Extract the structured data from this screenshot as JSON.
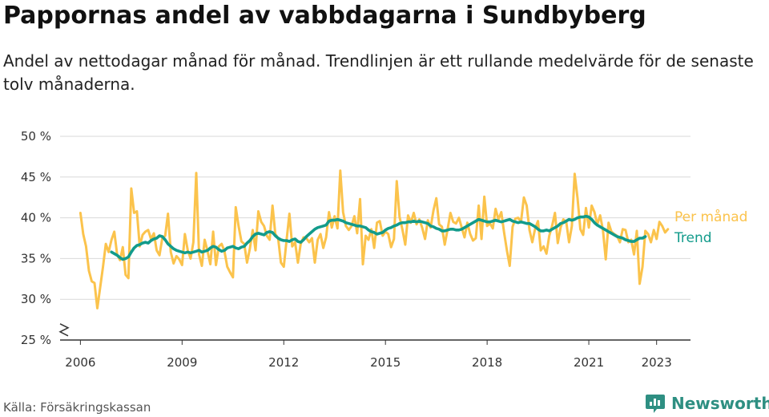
{
  "title": "Pappornas andel av vabbdagarna i Sundbyberg",
  "subtitle": "Andel av nettodagar månad för månad. Trendlinjen är ett rullande medelvärde för de senaste tolv månaderna.",
  "source": "Källa: Försäkringskassan",
  "brand": {
    "name": "Newsworthy",
    "icon": "newsworthy-logo-icon",
    "color": "#2e8f82"
  },
  "chart_data": {
    "type": "line",
    "title": "Pappornas andel av vabbdagarna i Sundbyberg",
    "xlabel": "",
    "ylabel": "",
    "x_start": "2006-01",
    "x_step": "month",
    "xlim": [
      2005.4,
      2024.0
    ],
    "ylim": [
      25,
      50
    ],
    "y_axis_break": true,
    "y_ticks": [
      {
        "value": 25,
        "label": "25 %"
      },
      {
        "value": 30,
        "label": "30 %"
      },
      {
        "value": 35,
        "label": "35 %"
      },
      {
        "value": 40,
        "label": "40 %"
      },
      {
        "value": 45,
        "label": "45 %"
      },
      {
        "value": 50,
        "label": "50 %"
      }
    ],
    "x_ticks": [
      {
        "value": 2006,
        "label": "2006"
      },
      {
        "value": 2009,
        "label": "2009"
      },
      {
        "value": 2012,
        "label": "2012"
      },
      {
        "value": 2015,
        "label": "2015"
      },
      {
        "value": 2018,
        "label": "2018"
      },
      {
        "value": 2021,
        "label": "2021"
      },
      {
        "value": 2023,
        "label": "2023"
      }
    ],
    "grid": "horizontal",
    "legend": "right, labels at line ends",
    "series": [
      {
        "name": "Per månad",
        "color": "#fbc34c",
        "start": "2006-01",
        "values": [
          40.6,
          38.0,
          36.5,
          33.5,
          32.2,
          32.0,
          28.9,
          31.5,
          34.0,
          36.8,
          35.8,
          37.3,
          38.3,
          35.5,
          34.8,
          36.4,
          33.0,
          32.6,
          43.6,
          40.6,
          40.8,
          36.5,
          37.9,
          38.3,
          38.5,
          37.4,
          38.1,
          36.0,
          35.4,
          37.5,
          37.8,
          40.5,
          35.8,
          34.4,
          35.3,
          34.9,
          34.2,
          38.0,
          36.0,
          35.0,
          37.0,
          45.5,
          35.5,
          34.1,
          37.3,
          35.9,
          34.3,
          38.3,
          34.2,
          36.5,
          36.8,
          35.9,
          34.0,
          33.3,
          32.7,
          41.3,
          39.0,
          37.1,
          36.8,
          34.5,
          36.2,
          38.5,
          36.0,
          40.8,
          39.5,
          39.0,
          37.8,
          37.3,
          41.5,
          38.0,
          37.5,
          34.5,
          34.0,
          37.3,
          40.5,
          36.5,
          37.0,
          34.5,
          36.8,
          37.6,
          37.5,
          37.0,
          37.5,
          34.5,
          37.3,
          38.0,
          36.3,
          37.6,
          40.7,
          38.8,
          40.2,
          38.7,
          45.8,
          40.7,
          39.0,
          38.5,
          39.0,
          40.2,
          38.1,
          42.3,
          34.3,
          37.8,
          37.3,
          38.6,
          36.3,
          39.4,
          39.6,
          37.8,
          38.3,
          38.0,
          36.4,
          37.4,
          44.5,
          40.1,
          38.6,
          36.7,
          40.3,
          39.4,
          40.6,
          39.2,
          39.8,
          38.8,
          37.4,
          39.7,
          38.8,
          40.9,
          42.4,
          39.2,
          38.9,
          36.7,
          38.6,
          40.6,
          39.5,
          39.3,
          40.0,
          38.8,
          37.6,
          39.4,
          38.0,
          37.2,
          37.5,
          41.5,
          37.4,
          42.6,
          39.0,
          39.3,
          38.7,
          41.1,
          39.8,
          40.7,
          38.2,
          36.0,
          34.1,
          38.9,
          39.9,
          40.0,
          39.5,
          42.5,
          41.5,
          38.5,
          37.0,
          38.7,
          39.6,
          36.0,
          36.5,
          35.6,
          37.8,
          39.0,
          40.6,
          36.9,
          38.8,
          39.8,
          39.5,
          37.0,
          39.0,
          45.4,
          42.4,
          38.6,
          37.9,
          41.2,
          38.8,
          41.5,
          40.7,
          39.2,
          40.3,
          38.5,
          34.9,
          39.4,
          38.3,
          38.0,
          37.8,
          37.0,
          38.6,
          38.5,
          37.0,
          37.3,
          35.5,
          38.4,
          31.9,
          34.0,
          38.4,
          38.0,
          37.0,
          38.5,
          37.4,
          39.5,
          39.0,
          38.2,
          38.6
        ]
      },
      {
        "name": "Trend",
        "color": "#129b8b",
        "start": "2006-12",
        "values": [
          35.8,
          35.6,
          35.4,
          35.1,
          34.9,
          35.0,
          35.2,
          35.8,
          36.3,
          36.6,
          36.7,
          36.9,
          37.0,
          36.9,
          37.2,
          37.4,
          37.5,
          37.8,
          37.7,
          37.3,
          36.8,
          36.5,
          36.2,
          36.0,
          35.9,
          35.8,
          35.7,
          35.8,
          35.7,
          35.8,
          35.9,
          36.0,
          35.8,
          35.9,
          36.0,
          36.3,
          36.5,
          36.4,
          36.1,
          35.9,
          36.0,
          36.3,
          36.4,
          36.5,
          36.3,
          36.2,
          36.4,
          36.5,
          36.9,
          37.2,
          37.7,
          38.0,
          38.1,
          38.0,
          37.9,
          38.2,
          38.3,
          38.2,
          37.8,
          37.5,
          37.3,
          37.2,
          37.2,
          37.1,
          37.3,
          37.4,
          37.1,
          37.0,
          37.3,
          37.7,
          38.0,
          38.3,
          38.6,
          38.8,
          38.9,
          39.0,
          39.1,
          39.6,
          39.7,
          39.7,
          39.8,
          39.7,
          39.6,
          39.4,
          39.3,
          39.2,
          39.1,
          39.0,
          39.0,
          38.9,
          38.8,
          38.5,
          38.3,
          38.2,
          38.0,
          38.1,
          38.2,
          38.5,
          38.7,
          38.8,
          39.0,
          39.1,
          39.3,
          39.4,
          39.4,
          39.5,
          39.5,
          39.6,
          39.5,
          39.6,
          39.5,
          39.4,
          39.3,
          39.0,
          38.9,
          38.7,
          38.6,
          38.4,
          38.4,
          38.5,
          38.6,
          38.6,
          38.5,
          38.5,
          38.6,
          38.8,
          39.0,
          39.2,
          39.4,
          39.6,
          39.8,
          39.7,
          39.6,
          39.5,
          39.5,
          39.6,
          39.7,
          39.6,
          39.5,
          39.6,
          39.7,
          39.8,
          39.6,
          39.5,
          39.4,
          39.5,
          39.4,
          39.3,
          39.3,
          39.1,
          38.9,
          38.6,
          38.4,
          38.4,
          38.5,
          38.4,
          38.6,
          38.8,
          39.0,
          39.3,
          39.4,
          39.6,
          39.8,
          39.7,
          39.8,
          40.0,
          40.1,
          40.1,
          40.2,
          40.1,
          39.8,
          39.4,
          39.1,
          38.9,
          38.7,
          38.5,
          38.3,
          38.1,
          37.9,
          37.7,
          37.6,
          37.5,
          37.3,
          37.2,
          37.1,
          37.1,
          37.3,
          37.5,
          37.5,
          37.7
        ]
      }
    ]
  }
}
